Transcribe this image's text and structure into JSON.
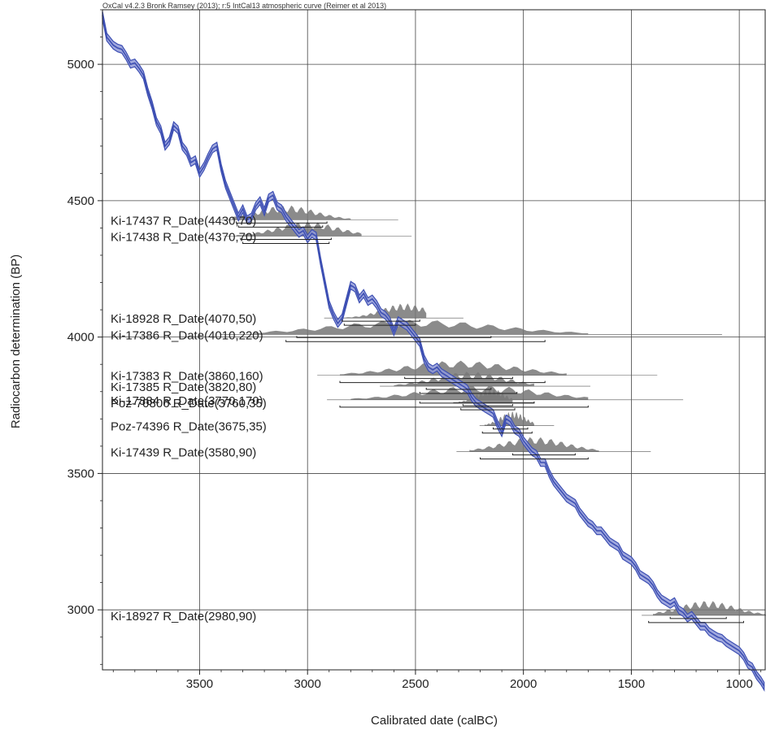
{
  "header": "OxCal v4.2.3 Bronk Ramsey (2013); r:5 IntCal13 atmospheric curve (Reimer et al 2013)",
  "chart_data": {
    "type": "line",
    "xlabel": "Calibrated date (calBC)",
    "ylabel": "Radiocarbon determination (BP)",
    "xlim": [
      3950,
      880
    ],
    "ylim": [
      2780,
      5200
    ],
    "x_ticks": [
      3500,
      3000,
      2500,
      2000,
      1500,
      1000
    ],
    "y_ticks": [
      5000,
      4500,
      4000,
      3500,
      3000
    ],
    "grid": true,
    "curve": {
      "x": [
        3950,
        3930,
        3900,
        3880,
        3860,
        3840,
        3820,
        3800,
        3780,
        3760,
        3740,
        3720,
        3700,
        3680,
        3660,
        3640,
        3620,
        3600,
        3580,
        3560,
        3540,
        3520,
        3500,
        3480,
        3460,
        3440,
        3420,
        3400,
        3380,
        3360,
        3340,
        3320,
        3300,
        3280,
        3260,
        3240,
        3220,
        3200,
        3180,
        3160,
        3140,
        3120,
        3100,
        3080,
        3060,
        3040,
        3020,
        3000,
        2980,
        2960,
        2940,
        2920,
        2900,
        2880,
        2860,
        2840,
        2820,
        2800,
        2780,
        2760,
        2740,
        2720,
        2700,
        2680,
        2660,
        2640,
        2620,
        2600,
        2580,
        2560,
        2540,
        2520,
        2500,
        2480,
        2460,
        2440,
        2420,
        2400,
        2380,
        2360,
        2340,
        2320,
        2300,
        2280,
        2260,
        2240,
        2220,
        2200,
        2180,
        2160,
        2140,
        2120,
        2100,
        2080,
        2060,
        2040,
        2020,
        2000,
        1980,
        1960,
        1940,
        1920,
        1900,
        1880,
        1860,
        1840,
        1820,
        1800,
        1780,
        1760,
        1740,
        1720,
        1700,
        1680,
        1660,
        1640,
        1620,
        1600,
        1580,
        1560,
        1540,
        1520,
        1500,
        1480,
        1460,
        1440,
        1420,
        1400,
        1380,
        1360,
        1340,
        1320,
        1300,
        1280,
        1260,
        1240,
        1220,
        1200,
        1180,
        1160,
        1140,
        1120,
        1100,
        1080,
        1060,
        1040,
        1020,
        1000,
        980,
        960,
        940,
        920,
        900,
        885
      ],
      "y": [
        5180,
        5100,
        5070,
        5060,
        5055,
        5030,
        5000,
        5005,
        4985,
        4960,
        4900,
        4850,
        4790,
        4760,
        4700,
        4720,
        4775,
        4760,
        4700,
        4680,
        4640,
        4650,
        4600,
        4625,
        4660,
        4690,
        4700,
        4620,
        4560,
        4520,
        4480,
        4440,
        4470,
        4430,
        4440,
        4480,
        4500,
        4460,
        4510,
        4520,
        4480,
        4470,
        4440,
        4420,
        4400,
        4380,
        4390,
        4360,
        4380,
        4370,
        4280,
        4200,
        4120,
        4080,
        4050,
        4070,
        4130,
        4190,
        4180,
        4140,
        4160,
        4130,
        4140,
        4120,
        4090,
        4080,
        4060,
        4020,
        4060,
        4050,
        4040,
        4020,
        4000,
        3980,
        3920,
        3890,
        3880,
        3890,
        3870,
        3860,
        3850,
        3840,
        3830,
        3820,
        3810,
        3780,
        3760,
        3750,
        3740,
        3730,
        3720,
        3680,
        3650,
        3700,
        3690,
        3660,
        3650,
        3620,
        3600,
        3580,
        3570,
        3540,
        3540,
        3500,
        3470,
        3450,
        3430,
        3410,
        3400,
        3390,
        3360,
        3340,
        3320,
        3310,
        3290,
        3290,
        3270,
        3250,
        3240,
        3230,
        3200,
        3190,
        3180,
        3160,
        3130,
        3120,
        3110,
        3090,
        3060,
        3040,
        3030,
        3020,
        3030,
        3000,
        2990,
        2970,
        2980,
        2960,
        2940,
        2940,
        2920,
        2910,
        2900,
        2895,
        2880,
        2870,
        2860,
        2850,
        2830,
        2800,
        2790,
        2760,
        2740,
        2720
      ]
    },
    "dates": [
      {
        "label": "Ki-17437 R_Date(4430,70)",
        "bp": 4430,
        "sd": 70,
        "from": 3350,
        "to": 2800,
        "peak": 3100,
        "ranges": [
          [
            3330,
            2910
          ],
          [
            3320,
            2930
          ]
        ]
      },
      {
        "label": "Ki-17438 R_Date(4370,70)",
        "bp": 4370,
        "sd": 70,
        "from": 3330,
        "to": 2750,
        "peak": 3000,
        "ranges": [
          [
            3310,
            2890
          ],
          [
            3300,
            2900
          ]
        ]
      },
      {
        "label": "Ki-18928 R_Date(4070,50)",
        "bp": 4070,
        "sd": 50,
        "from": 2880,
        "to": 2450,
        "peak": 2550,
        "ranges": [
          [
            2840,
            2480
          ],
          [
            2830,
            2500
          ]
        ]
      },
      {
        "label": "Ki-17386 R_Date(4010,220)",
        "bp": 4010,
        "sd": 220,
        "from": 3250,
        "to": 1700,
        "peak": 2500,
        "ranges": [
          [
            3050,
            2150
          ],
          [
            3100,
            1900
          ]
        ]
      },
      {
        "label": "Ki-17383 R_Date(3860,160)",
        "bp": 3860,
        "sd": 160,
        "from": 2850,
        "to": 1800,
        "peak": 2300,
        "ranges": [
          [
            2550,
            2050
          ],
          [
            2850,
            1900
          ]
        ]
      },
      {
        "label": "Ki-17385 R_Date(3820,80)",
        "bp": 3820,
        "sd": 80,
        "from": 2600,
        "to": 1950,
        "peak": 2250,
        "ranges": [
          [
            2450,
            2150
          ],
          [
            2480,
            2030
          ]
        ]
      },
      {
        "label": "Ki-17384 R_Date(3770,170)",
        "bp": 3770,
        "sd": 170,
        "from": 2800,
        "to": 1700,
        "peak": 2200,
        "ranges": [
          [
            2480,
            1950
          ],
          [
            2850,
            1700
          ]
        ]
      },
      {
        "label": "Poz-70806 R_Date(3760,35)",
        "bp": 3760,
        "sd": 35,
        "from": 2300,
        "to": 2050,
        "peak": 2150,
        "ranges": [
          [
            2280,
            2050
          ],
          [
            2290,
            2040
          ]
        ]
      },
      {
        "label": "Poz-74396 R_Date(3675,35)",
        "bp": 3675,
        "sd": 35,
        "from": 2180,
        "to": 1950,
        "peak": 2050,
        "ranges": [
          [
            2140,
            1980
          ],
          [
            2190,
            1960
          ]
        ]
      },
      {
        "label": "Ki-17439 R_Date(3580,90)",
        "bp": 3580,
        "sd": 90,
        "from": 2250,
        "to": 1650,
        "peak": 1950,
        "ranges": [
          [
            2050,
            1760
          ],
          [
            2200,
            1700
          ]
        ]
      },
      {
        "label": "Ki-18927 R_Date(2980,90)",
        "bp": 2980,
        "sd": 90,
        "from": 1400,
        "to": 880,
        "peak": 1150,
        "ranges": [
          [
            1320,
            1060
          ],
          [
            1420,
            980
          ]
        ]
      }
    ],
    "colors": {
      "curve": "#3d4fb3",
      "curve_fill": "#8f99d8",
      "density": "#777777",
      "grid": "#444444"
    }
  }
}
